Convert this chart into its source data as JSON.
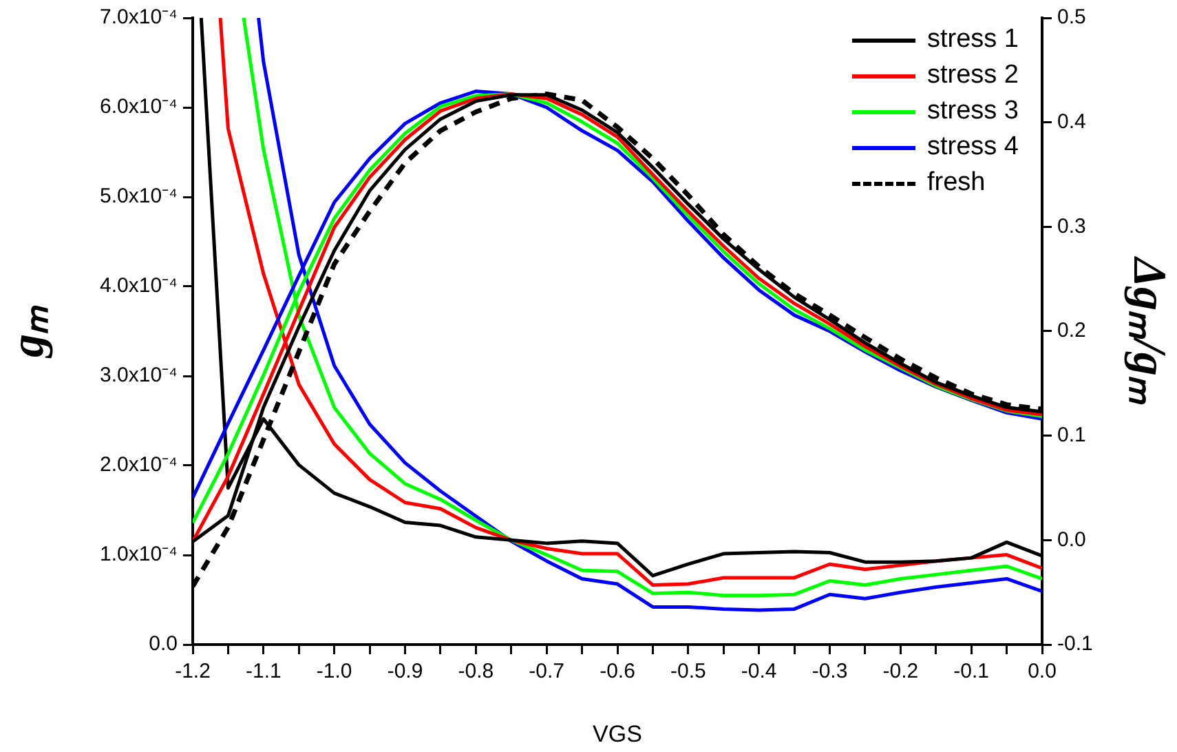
{
  "chart_data": {
    "type": "line",
    "xlabel": "VGS",
    "ylabel": "gₘ",
    "y2label": "Δgₘ/gₘ",
    "legend": "top right",
    "grid": false,
    "marker": "none",
    "x": [
      -1.2,
      -1.15,
      -1.1,
      -1.05,
      -1.0,
      -0.95,
      -0.9,
      -0.85,
      -0.8,
      -0.75,
      -0.7,
      -0.65,
      -0.6,
      -0.55,
      -0.5,
      -0.45,
      -0.4,
      -0.35,
      -0.3,
      -0.25,
      -0.2,
      -0.15,
      -0.1,
      -0.05,
      0
    ],
    "xlim": [
      -1.2,
      0
    ],
    "xticks": [
      {
        "value": -1.2,
        "label": "-1.2"
      },
      {
        "value": -1.15,
        "label": null
      },
      {
        "value": -1.1,
        "label": "-1.1"
      },
      {
        "value": -1.05,
        "label": null
      },
      {
        "value": -1.0,
        "label": "-1.0"
      },
      {
        "value": -0.95,
        "label": null
      },
      {
        "value": -0.9,
        "label": "-0.9"
      },
      {
        "value": -0.85,
        "label": null
      },
      {
        "value": -0.8,
        "label": "-0.8"
      },
      {
        "value": -0.75,
        "label": null
      },
      {
        "value": -0.7,
        "label": "-0.7"
      },
      {
        "value": -0.65,
        "label": null
      },
      {
        "value": -0.6,
        "label": "-0.6"
      },
      {
        "value": -0.55,
        "label": null
      },
      {
        "value": -0.5,
        "label": "-0.5"
      },
      {
        "value": -0.45,
        "label": null
      },
      {
        "value": -0.4,
        "label": "-0.4"
      },
      {
        "value": -0.35,
        "label": null
      },
      {
        "value": -0.3,
        "label": "-0.3"
      },
      {
        "value": -0.25,
        "label": null
      },
      {
        "value": -0.2,
        "label": "-0.2"
      },
      {
        "value": -0.15,
        "label": null
      },
      {
        "value": -0.1,
        "label": "-0.1"
      },
      {
        "value": -0.05,
        "label": null
      },
      {
        "value": 0,
        "label": "0.0"
      }
    ],
    "ylim": [
      0,
      0.0007
    ],
    "yticks": [
      {
        "value": 0,
        "label": "0.0"
      },
      {
        "value": 0.0001,
        "label": "1.0x10⁻⁴"
      },
      {
        "value": 0.0002,
        "label": "2.0x10⁻⁴"
      },
      {
        "value": 0.0003,
        "label": "3.0x10⁻⁴"
      },
      {
        "value": 0.0004,
        "label": "4.0x10⁻⁴"
      },
      {
        "value": 0.0005,
        "label": "5.0x10⁻⁴"
      },
      {
        "value": 0.0006,
        "label": "6.0x10⁻⁴"
      },
      {
        "value": 0.0007,
        "label": "7.0x10⁻⁴"
      }
    ],
    "y2lim": [
      -0.1,
      0.5
    ],
    "y2ticks": [
      -0.1,
      {
        "value": 0,
        "label": "0.0"
      },
      0.1,
      0.2,
      0.3,
      0.4,
      0.5
    ],
    "series": [
      {
        "name": "stress 1",
        "color": "#000000",
        "values": [
          0.000115,
          0.000144,
          0.000265,
          0.000355,
          0.00044,
          0.000507,
          0.000553,
          0.000587,
          0.000607,
          0.000614,
          0.000614,
          0.000597,
          0.000572,
          0.000533,
          0.000492,
          0.000453,
          0.000419,
          0.000388,
          0.000363,
          0.000337,
          0.000314,
          0.000293,
          0.000278,
          0.000265,
          0.00026
        ]
      },
      {
        "name": "stress 2",
        "color": "#ff0000",
        "values": [
          0.000115,
          0.000188,
          0.00028,
          0.000373,
          0.000466,
          0.000522,
          0.000564,
          0.000596,
          0.00061,
          0.000615,
          0.00061,
          0.000592,
          0.000567,
          0.000525,
          0.000484,
          0.000445,
          0.000409,
          0.000381,
          0.000358,
          0.000333,
          0.000311,
          0.000291,
          0.000275,
          0.000262,
          0.000257
        ]
      },
      {
        "name": "stress 3",
        "color": "#00ff00",
        "values": [
          0.000136,
          0.000213,
          0.000301,
          0.000394,
          0.000476,
          0.00053,
          0.000571,
          0.000601,
          0.000613,
          0.000615,
          0.000605,
          0.000584,
          0.00056,
          0.000521,
          0.000479,
          0.000439,
          0.000403,
          0.000374,
          0.000353,
          0.000329,
          0.000309,
          0.000289,
          0.000274,
          0.000261,
          0.000255
        ]
      },
      {
        "name": "stress 4",
        "color": "#0000ff",
        "values": [
          0.000164,
          0.000247,
          0.000329,
          0.000412,
          0.000494,
          0.000543,
          0.000582,
          0.000605,
          0.000618,
          0.000615,
          0.0006,
          0.000574,
          0.000552,
          0.000517,
          0.000473,
          0.000432,
          0.000396,
          0.000368,
          0.00035,
          0.000327,
          0.000306,
          0.000288,
          0.000273,
          0.000259,
          0.000252
        ]
      },
      {
        "name": "fresh",
        "color": "#000000",
        "line_style": "dashed",
        "values": [
          6.5e-05,
          0.000131,
          0.000229,
          0.000327,
          0.000425,
          0.000484,
          0.000538,
          0.000574,
          0.000595,
          0.00061,
          0.000615,
          0.000608,
          0.000578,
          0.000543,
          0.000502,
          0.000458,
          0.000422,
          0.000392,
          0.000368,
          0.000343,
          0.000319,
          0.000298,
          0.00028,
          0.000268,
          0.000263
        ]
      },
      {
        "color": "#000000",
        "axis": "y2",
        "x": [
          -1.188,
          -1.15,
          -1.1,
          -1.05,
          -1.0,
          -0.95,
          -0.9,
          -0.85,
          -0.8,
          -0.75,
          -0.7,
          -0.65,
          -0.6,
          -0.55,
          -0.5,
          -0.45,
          -0.4,
          -0.35,
          -0.3,
          -0.25,
          -0.2,
          -0.15,
          -0.1,
          -0.05,
          0
        ],
        "values": [
          0.5,
          0.05,
          0.116,
          0.072,
          0.045,
          0.032,
          0.017,
          0.014,
          0.003,
          0.0,
          -0.003,
          -0.001,
          -0.003,
          -0.034,
          -0.023,
          -0.013,
          -0.012,
          -0.011,
          -0.012,
          -0.021,
          -0.021,
          -0.02,
          -0.017,
          -0.002,
          -0.015
        ]
      },
      {
        "color": "#ff0000",
        "axis": "y2",
        "x": [
          -1.161,
          -1.15,
          -1.1,
          -1.05,
          -1.0,
          -0.95,
          -0.9,
          -0.85,
          -0.8,
          -0.75,
          -0.7,
          -0.65,
          -0.6,
          -0.55,
          -0.5,
          -0.45,
          -0.4,
          -0.35,
          -0.3,
          -0.25,
          -0.2,
          -0.15,
          -0.1,
          -0.05,
          0
        ],
        "values": [
          0.5,
          0.394,
          0.255,
          0.149,
          0.092,
          0.058,
          0.036,
          0.03,
          0.012,
          0.0,
          -0.008,
          -0.013,
          -0.013,
          -0.043,
          -0.042,
          -0.036,
          -0.036,
          -0.036,
          -0.023,
          -0.028,
          -0.024,
          -0.02,
          -0.017,
          -0.014,
          -0.027
        ]
      },
      {
        "color": "#00ff00",
        "axis": "y2",
        "x": [
          -1.128,
          -1.1,
          -1.05,
          -1.0,
          -0.95,
          -0.9,
          -0.85,
          -0.8,
          -0.75,
          -0.7,
          -0.65,
          -0.6,
          -0.55,
          -0.5,
          -0.45,
          -0.4,
          -0.35,
          -0.3,
          -0.25,
          -0.2,
          -0.15,
          -0.1,
          -0.05,
          0
        ],
        "values": [
          0.5,
          0.374,
          0.215,
          0.127,
          0.083,
          0.054,
          0.039,
          0.019,
          0.0,
          -0.014,
          -0.029,
          -0.03,
          -0.051,
          -0.05,
          -0.053,
          -0.053,
          -0.052,
          -0.039,
          -0.043,
          -0.037,
          -0.033,
          -0.029,
          -0.025,
          -0.037
        ]
      },
      {
        "color": "#0000ff",
        "axis": "y2",
        "x": [
          -1.107,
          -1.1,
          -1.05,
          -1.0,
          -0.95,
          -0.9,
          -0.85,
          -0.8,
          -0.75,
          -0.7,
          -0.65,
          -0.6,
          -0.55,
          -0.5,
          -0.45,
          -0.4,
          -0.35,
          -0.3,
          -0.25,
          -0.2,
          -0.15,
          -0.1,
          -0.05,
          0
        ],
        "values": [
          0.5,
          0.458,
          0.273,
          0.167,
          0.111,
          0.074,
          0.047,
          0.023,
          -0.001,
          -0.02,
          -0.037,
          -0.042,
          -0.064,
          -0.064,
          -0.066,
          -0.067,
          -0.066,
          -0.052,
          -0.056,
          -0.05,
          -0.045,
          -0.041,
          -0.037,
          -0.049
        ]
      }
    ]
  }
}
